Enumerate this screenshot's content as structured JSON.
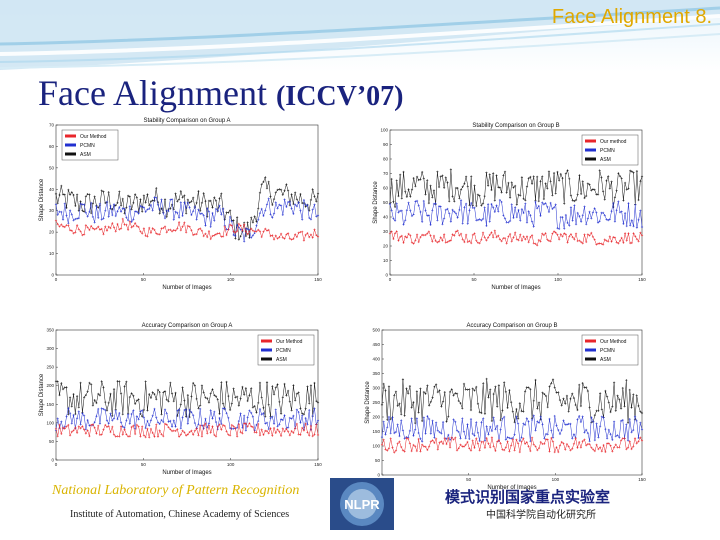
{
  "slide": {
    "corner_title": "Face Alignment 8.",
    "title_main": "Face Alignment",
    "title_venue": "(ICCV’07)",
    "footer_lab_en": "National Laboratory of Pattern Recognition",
    "footer_institute": "Institute of Automation, Chinese Academy of Sciences",
    "footer_lab_cn": "模式识别国家重点实验室",
    "footer_institute_cn": "中国科学院自动化研究所",
    "logo_text": "NLPR"
  },
  "colors": {
    "our": "#e8262b",
    "pcmn": "#2230d0",
    "asm": "#111111",
    "title": "#1a237e",
    "accent": "#e0a800"
  },
  "chart_data": [
    {
      "type": "line",
      "title": "Stability Comparison on Group A",
      "xlabel": "Number of Images",
      "ylabel": "Shape Distance",
      "xlim": [
        0,
        150
      ],
      "ylim": [
        0,
        70
      ],
      "xticks": [
        0,
        50,
        100,
        150
      ],
      "yticks": [
        0,
        10,
        20,
        30,
        40,
        50,
        60,
        70
      ],
      "legend_position": "top-left",
      "n_points": 150,
      "series": [
        {
          "name": "Our Method",
          "color": "#e8262b",
          "marker": "+",
          "profile": [
            23,
            22,
            21,
            20,
            22,
            24,
            21,
            20,
            22,
            23,
            21,
            19,
            20,
            22,
            21,
            20,
            18,
            17,
            18,
            20
          ],
          "noise": 2.5
        },
        {
          "name": "PCMN",
          "color": "#2230d0",
          "marker": "*",
          "profile": [
            30,
            29,
            31,
            28,
            30,
            29,
            30,
            32,
            31,
            30,
            28,
            27,
            28,
            20,
            18,
            32,
            31,
            33,
            30,
            28
          ],
          "noise": 5
        },
        {
          "name": "ASM",
          "color": "#111111",
          "marker": "*",
          "profile": [
            36,
            35,
            33,
            34,
            35,
            32,
            34,
            36,
            33,
            35,
            34,
            33,
            32,
            22,
            20,
            40,
            38,
            37,
            35,
            34
          ],
          "noise": 6
        }
      ]
    },
    {
      "type": "line",
      "title": "Stability Comparison on Group B",
      "xlabel": "Number of Images",
      "ylabel": "Shape Distance",
      "xlim": [
        0,
        150
      ],
      "ylim": [
        0,
        100
      ],
      "xticks": [
        0,
        50,
        100,
        150
      ],
      "yticks": [
        0,
        10,
        20,
        30,
        40,
        50,
        60,
        70,
        80,
        90,
        100
      ],
      "legend_position": "top-right",
      "n_points": 150,
      "series": [
        {
          "name": "Our method",
          "color": "#e8262b",
          "marker": "+",
          "profile": [
            28,
            26,
            25,
            27,
            26,
            28,
            25,
            26,
            27,
            25,
            26,
            24,
            26,
            27,
            25,
            26,
            24,
            25,
            26,
            25
          ],
          "noise": 4
        },
        {
          "name": "PCMN",
          "color": "#2230d0",
          "marker": "*",
          "profile": [
            42,
            40,
            44,
            41,
            43,
            45,
            42,
            40,
            43,
            44,
            41,
            42,
            43,
            40,
            42,
            44,
            41,
            43,
            42,
            41
          ],
          "noise": 9
        },
        {
          "name": "ASM",
          "color": "#111111",
          "marker": "*",
          "profile": [
            58,
            60,
            62,
            59,
            61,
            63,
            60,
            58,
            62,
            61,
            59,
            60,
            62,
            61,
            59,
            60,
            62,
            58,
            60,
            61
          ],
          "noise": 12
        }
      ]
    },
    {
      "type": "line",
      "title": "Accuracy Comparison on Group A",
      "xlabel": "Number of Images",
      "ylabel": "Shape Distance",
      "xlim": [
        0,
        150
      ],
      "ylim": [
        0,
        350
      ],
      "xticks": [
        0,
        50,
        100,
        150
      ],
      "yticks": [
        0,
        50,
        100,
        150,
        200,
        250,
        300,
        350
      ],
      "legend_position": "top-right",
      "n_points": 150,
      "series": [
        {
          "name": "Our Method",
          "color": "#e8262b",
          "marker": "+",
          "profile": [
            80,
            78,
            82,
            80,
            79,
            81,
            80,
            78,
            82,
            80,
            79,
            81,
            80,
            78,
            82,
            80,
            79,
            81,
            80,
            79
          ],
          "noise": 18
        },
        {
          "name": "PCMN",
          "color": "#2230d0",
          "marker": "*",
          "profile": [
            110,
            112,
            108,
            111,
            110,
            109,
            112,
            110,
            108,
            111,
            110,
            109,
            112,
            110,
            108,
            111,
            110,
            109,
            112,
            110
          ],
          "noise": 30
        },
        {
          "name": "ASM",
          "color": "#111111",
          "marker": "*",
          "profile": [
            165,
            168,
            162,
            166,
            164,
            167,
            163,
            165,
            168,
            162,
            166,
            164,
            167,
            163,
            165,
            168,
            162,
            166,
            164,
            165
          ],
          "noise": 50
        }
      ]
    },
    {
      "type": "line",
      "title": "Accuracy Comparison on Group B",
      "xlabel": "Number of Images",
      "ylabel": "Shape Distance",
      "xlim": [
        0,
        150
      ],
      "ylim": [
        0,
        500
      ],
      "xticks": [
        0,
        50,
        100,
        150
      ],
      "yticks": [
        0,
        50,
        100,
        150,
        200,
        250,
        300,
        350,
        400,
        450,
        500
      ],
      "legend_position": "top-right",
      "n_points": 150,
      "series": [
        {
          "name": "Our Method",
          "color": "#e8262b",
          "marker": "+",
          "profile": [
            105,
            102,
            108,
            104,
            103,
            106,
            104,
            102,
            107,
            105,
            103,
            106,
            104,
            102,
            108,
            104,
            103,
            106,
            104,
            105
          ],
          "noise": 25
        },
        {
          "name": "PCMN",
          "color": "#2230d0",
          "marker": "*",
          "profile": [
            160,
            158,
            162,
            160,
            159,
            161,
            160,
            158,
            162,
            160,
            159,
            161,
            160,
            158,
            162,
            160,
            159,
            161,
            160,
            160
          ],
          "noise": 45
        },
        {
          "name": "ASM",
          "color": "#111111",
          "marker": "*",
          "profile": [
            255,
            258,
            252,
            256,
            254,
            257,
            253,
            255,
            258,
            252,
            256,
            254,
            257,
            253,
            255,
            258,
            252,
            256,
            254,
            255
          ],
          "noise": 75
        }
      ]
    }
  ]
}
